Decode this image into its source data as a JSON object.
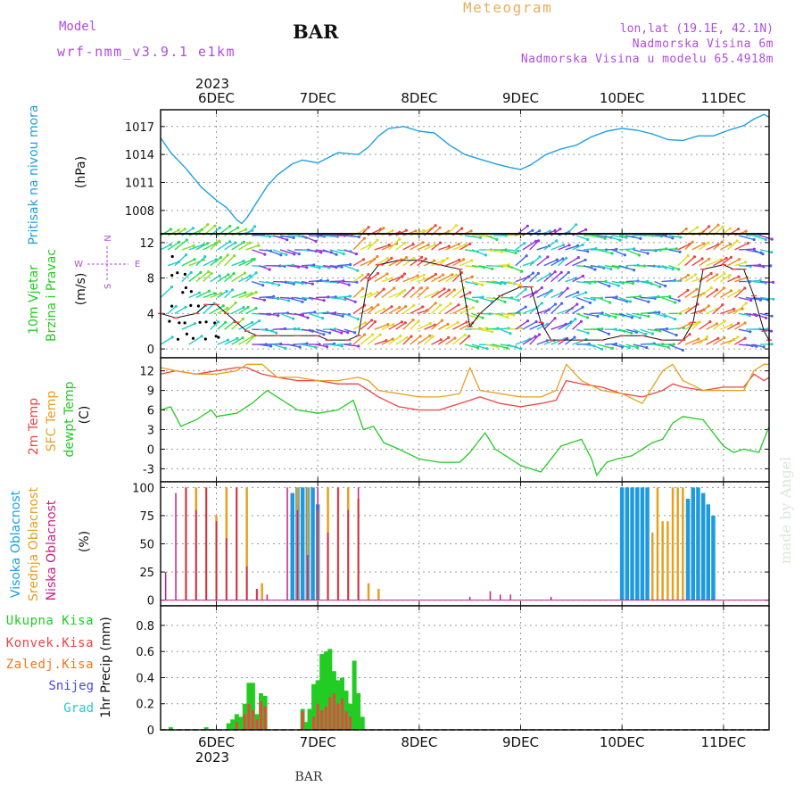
{
  "header": {
    "model_label": "Model",
    "model_name": "wrf-nmm_v3.9.1 e1km",
    "station": "BAR",
    "title": "Meteogram",
    "lonlat": "lon,lat (19.1E, 42.1N)",
    "altitude": "Nadmorska Visina 6m",
    "model_altitude": "Nadmorska Visina u modelu 65.4918m",
    "watermark": "made by Angel",
    "footer_station": "BAR"
  },
  "colors": {
    "pressure": "#1ea0e0",
    "temp2m": "#ee4444",
    "sfc": "#e6a020",
    "dew": "#22cc22",
    "high_cloud": "#1e9be0",
    "mid_cloud": "#e6a020",
    "low_cloud": "#cc1e80",
    "precip_total": "#22cc22",
    "precip_conv": "#ee4444",
    "precip_frz": "#f07820",
    "snow": "#4444ee",
    "graupel": "#22cccc",
    "label_purple": "#b04ce0",
    "wind_speed": "#ee4444"
  },
  "chart_data": [
    {
      "type": "line",
      "panel": "pressure",
      "ylabel_left": "Pritisak na nivou mora",
      "ylabel_unit": "(hPa)",
      "ylim": [
        1005.5,
        1018.8
      ],
      "yticks": [
        "1017",
        "1014",
        "1011",
        "1008"
      ],
      "yticks_values": [
        1017,
        1014,
        1011,
        1008
      ],
      "x_date_ticks": [
        "6DEC",
        "7DEC",
        "8DEC",
        "9DEC",
        "10DEC",
        "11DEC"
      ],
      "x_year": "2023",
      "x_days": [
        0,
        1,
        2,
        3,
        4,
        5
      ],
      "xlim_days": [
        -0.55,
        5.45
      ],
      "series": [
        {
          "x_days": [
            -0.55,
            -0.45,
            -0.3,
            -0.15,
            0,
            0.1,
            0.2,
            0.25,
            0.3,
            0.4,
            0.5,
            0.6,
            0.75,
            0.85,
            1.0,
            1.2,
            1.4,
            1.5,
            1.6,
            1.7,
            1.85,
            2.0,
            2.15,
            2.3,
            2.45,
            2.6,
            2.75,
            2.9,
            3.0,
            3.1,
            3.25,
            3.4,
            3.55,
            3.7,
            3.85,
            4.0,
            4.15,
            4.3,
            4.45,
            4.6,
            4.75,
            4.9,
            5.05,
            5.2,
            5.3,
            5.4,
            5.45
          ],
          "values": [
            1015.8,
            1014.2,
            1012.5,
            1010.5,
            1009.1,
            1008.3,
            1007.0,
            1006.6,
            1007.2,
            1008.9,
            1010.6,
            1011.8,
            1013.0,
            1013.4,
            1013.1,
            1014.2,
            1014.0,
            1014.8,
            1016.0,
            1016.8,
            1017.0,
            1016.5,
            1016.3,
            1015.0,
            1014.0,
            1013.5,
            1013.0,
            1012.6,
            1012.4,
            1012.9,
            1014.0,
            1014.6,
            1015.0,
            1015.9,
            1016.5,
            1016.8,
            1016.6,
            1016.2,
            1015.6,
            1015.5,
            1016.0,
            1016.0,
            1016.6,
            1017.1,
            1017.8,
            1018.3,
            1018.0
          ]
        }
      ]
    },
    {
      "type": "line",
      "panel": "wind",
      "ylabel_left": "10m Vjetar",
      "ylabel_left2": "Brzina i Pravac",
      "ylabel_unit": "(m/s)",
      "compass_n": "N",
      "compass_s": "S",
      "compass_w": "W",
      "compass_e": "E",
      "ylim": [
        -1,
        13
      ],
      "yticks": [
        "12",
        "8",
        "4",
        "0"
      ],
      "yticks_values": [
        12,
        8,
        4,
        0
      ],
      "series": [
        {
          "name": "speed",
          "x_days": [
            -0.55,
            -0.4,
            -0.2,
            -0.1,
            0.0,
            0.1,
            0.2,
            0.3,
            0.4,
            0.6,
            0.8,
            1.0,
            1.1,
            1.3,
            1.4,
            1.5,
            1.6,
            1.8,
            2.0,
            2.2,
            2.4,
            2.5,
            2.6,
            2.8,
            3.0,
            3.1,
            3.2,
            3.3,
            3.4,
            3.6,
            3.8,
            4.0,
            4.2,
            4.4,
            4.6,
            4.7,
            4.8,
            5.0,
            5.1,
            5.2,
            5.3,
            5.4,
            5.45
          ],
          "values": [
            4.0,
            3.5,
            4.0,
            5.0,
            5.0,
            4.0,
            3.0,
            2.0,
            1.5,
            1.5,
            1.5,
            1.5,
            1.0,
            1.0,
            1.5,
            8.0,
            9.5,
            10.0,
            10.0,
            9.5,
            9.0,
            2.5,
            4.0,
            6.0,
            7.0,
            7.0,
            3.0,
            1.0,
            1.0,
            1.0,
            1.0,
            1.5,
            1.5,
            1.0,
            1.0,
            3.0,
            9.0,
            9.5,
            9.0,
            9.0,
            6.0,
            2.0,
            1.0
          ]
        }
      ],
      "barb_bands": [
        {
          "from_day": -0.55,
          "to_day": 0.35,
          "colors": [
            "#22cccc",
            "#22dd55",
            "#88dd22"
          ]
        },
        {
          "from_day": 0.35,
          "to_day": 1.35,
          "colors": [
            "#9933dd",
            "#4466ee",
            "#22cccc"
          ]
        },
        {
          "from_day": 1.35,
          "to_day": 2.45,
          "colors": [
            "#ee4444",
            "#f08820",
            "#dddd22"
          ]
        },
        {
          "from_day": 2.45,
          "to_day": 2.95,
          "colors": [
            "#22dd55",
            "#22cccc",
            "#dddd22"
          ]
        },
        {
          "from_day": 2.95,
          "to_day": 3.55,
          "colors": [
            "#9933dd",
            "#4466ee",
            "#22cccc"
          ]
        },
        {
          "from_day": 3.55,
          "to_day": 4.55,
          "colors": [
            "#22cccc",
            "#22dd55",
            "#4466ee"
          ]
        },
        {
          "from_day": 4.55,
          "to_day": 5.15,
          "colors": [
            "#ee4444",
            "#f08820",
            "#dddd22"
          ]
        },
        {
          "from_day": 5.15,
          "to_day": 5.45,
          "colors": [
            "#9933dd",
            "#4466ee",
            "#22cccc"
          ]
        }
      ]
    },
    {
      "type": "line",
      "panel": "temperature",
      "ylabel_lines": [
        "2m Temp",
        "SFC Temp",
        "dewpt Temp"
      ],
      "ylabel_unit": "(C)",
      "ylim": [
        -5,
        14
      ],
      "yticks": [
        "12",
        "9",
        "6",
        "3",
        "0",
        "-3"
      ],
      "yticks_values": [
        12,
        9,
        6,
        3,
        0,
        -3
      ],
      "series": [
        {
          "name": "2m Temp",
          "x_days": [
            -0.55,
            -0.4,
            -0.2,
            0.0,
            0.2,
            0.3,
            0.45,
            0.6,
            0.8,
            1.0,
            1.2,
            1.4,
            1.5,
            1.6,
            1.8,
            2.0,
            2.2,
            2.4,
            2.5,
            2.6,
            2.8,
            3.0,
            3.2,
            3.35,
            3.45,
            3.6,
            3.8,
            4.0,
            4.2,
            4.4,
            4.5,
            4.6,
            4.8,
            5.0,
            5.2,
            5.3,
            5.4,
            5.45
          ],
          "values": [
            11.5,
            12.0,
            11.5,
            12.0,
            12.5,
            12.5,
            11.5,
            11.0,
            10.5,
            10.5,
            10.0,
            10.0,
            9.0,
            8.0,
            6.5,
            6.0,
            6.0,
            7.0,
            7.5,
            8.0,
            7.0,
            6.5,
            7.0,
            7.5,
            10.5,
            10.0,
            9.5,
            8.5,
            8.0,
            9.0,
            10.0,
            9.5,
            9.0,
            9.5,
            9.5,
            11.5,
            10.5,
            11.0
          ]
        },
        {
          "name": "SFC Temp",
          "x_days": [
            -0.55,
            -0.4,
            -0.2,
            0.0,
            0.2,
            0.3,
            0.45,
            0.6,
            0.8,
            1.0,
            1.2,
            1.4,
            1.5,
            1.6,
            1.8,
            2.0,
            2.2,
            2.4,
            2.5,
            2.6,
            2.8,
            3.0,
            3.2,
            3.35,
            3.45,
            3.6,
            3.8,
            4.0,
            4.2,
            4.4,
            4.5,
            4.6,
            4.8,
            5.0,
            5.2,
            5.3,
            5.4,
            5.45
          ],
          "values": [
            12.5,
            12.0,
            11.5,
            11.5,
            12.0,
            13.0,
            13.0,
            11.0,
            11.0,
            10.5,
            10.5,
            11.0,
            10.5,
            9.0,
            8.5,
            8.0,
            8.0,
            8.5,
            12.5,
            9.0,
            8.5,
            8.0,
            8.0,
            9.0,
            13.0,
            10.5,
            9.0,
            8.5,
            7.0,
            12.0,
            13.0,
            10.5,
            9.0,
            9.0,
            9.0,
            12.0,
            13.0,
            13.0
          ]
        },
        {
          "name": "dewpt Temp",
          "x_days": [
            -0.55,
            -0.45,
            -0.35,
            -0.2,
            -0.05,
            0.0,
            0.2,
            0.35,
            0.5,
            0.6,
            0.8,
            1.0,
            1.2,
            1.35,
            1.45,
            1.55,
            1.65,
            1.8,
            2.0,
            2.2,
            2.4,
            2.5,
            2.65,
            2.75,
            2.9,
            3.0,
            3.2,
            3.25,
            3.4,
            3.6,
            3.7,
            3.75,
            3.85,
            3.95,
            4.1,
            4.3,
            4.4,
            4.5,
            4.6,
            4.8,
            5.0,
            5.1,
            5.2,
            5.35,
            5.45
          ],
          "values": [
            6.0,
            6.5,
            3.5,
            4.5,
            6.0,
            5.0,
            5.5,
            7.0,
            9.0,
            8.0,
            6.0,
            5.5,
            6.0,
            7.5,
            3.0,
            3.5,
            1.0,
            0.0,
            -1.5,
            -2.0,
            -2.0,
            -0.5,
            2.5,
            0.0,
            -1.5,
            -2.5,
            -3.5,
            -2.5,
            0.5,
            1.5,
            -1.5,
            -4.0,
            -2.0,
            -1.5,
            -1.0,
            1.0,
            1.5,
            4.0,
            5.0,
            4.5,
            0.5,
            -0.5,
            0.0,
            -0.5,
            3.5
          ]
        }
      ]
    },
    {
      "type": "bar",
      "panel": "cloud",
      "ylabel_lines": [
        "Visoka Oblacnost",
        "Srednja Oblacnost",
        "Niska Oblacnost"
      ],
      "ylabel_unit": "(%)",
      "ylim": [
        -5,
        105
      ],
      "yticks": [
        "100",
        "75",
        "50",
        "25",
        "0"
      ],
      "yticks_values": [
        100,
        75,
        50,
        25,
        0
      ],
      "series": [
        {
          "name": "Visoka Oblacnost",
          "x_days": [
            0.75,
            0.8,
            0.85,
            0.9,
            0.95,
            1.0,
            4.0,
            4.05,
            4.1,
            4.15,
            4.2,
            4.25,
            4.65,
            4.7,
            4.75,
            4.8,
            4.85,
            4.9
          ],
          "values": [
            95,
            100,
            100,
            100,
            100,
            85,
            100,
            100,
            100,
            100,
            100,
            100,
            90,
            100,
            100,
            95,
            85,
            75
          ]
        },
        {
          "name": "Srednja Oblacnost",
          "x_days": [
            -0.3,
            -0.2,
            -0.1,
            0.0,
            0.1,
            0.2,
            0.3,
            0.4,
            0.45,
            0.8,
            0.9,
            1.0,
            1.1,
            1.2,
            1.3,
            1.4,
            1.5,
            1.6,
            4.3,
            4.35,
            4.4,
            4.45,
            4.5,
            4.55,
            4.6
          ],
          "values": [
            100,
            100,
            100,
            75,
            100,
            100,
            100,
            10,
            15,
            100,
            100,
            80,
            100,
            100,
            100,
            90,
            15,
            10,
            60,
            100,
            70,
            70,
            100,
            100,
            100
          ]
        },
        {
          "name": "Niska Oblacnost",
          "x_days": [
            -0.5,
            -0.4,
            -0.3,
            -0.2,
            -0.1,
            0.0,
            0.1,
            0.2,
            0.3,
            0.4,
            0.5,
            0.7,
            0.8,
            0.9,
            1.0,
            1.1,
            1.2,
            1.3,
            1.4,
            2.5,
            2.7,
            2.8,
            2.9,
            3.3
          ],
          "values": [
            25,
            95,
            100,
            80,
            100,
            70,
            55,
            100,
            30,
            10,
            5,
            100,
            80,
            40,
            100,
            60,
            100,
            80,
            100,
            3,
            8,
            5,
            5,
            3
          ]
        }
      ]
    },
    {
      "type": "bar",
      "panel": "precip",
      "ylabel_lines": [
        "Ukupna Kisa",
        "Konvek.Kisa",
        "Zaledj.Kisa",
        "Snijeg",
        "Grad"
      ],
      "ylabel_unit": "1hr Precip (mm)",
      "ylim": [
        0,
        0.95
      ],
      "yticks": [
        "0.8",
        "0.6",
        "0.4",
        "0.2",
        "0"
      ],
      "yticks_values": [
        0.8,
        0.6,
        0.4,
        0.2,
        0
      ],
      "series": [
        {
          "name": "Ukupna Kisa",
          "x_days": [
            -0.45,
            -0.1,
            0.12,
            0.16,
            0.2,
            0.24,
            0.28,
            0.32,
            0.36,
            0.4,
            0.44,
            0.48,
            0.85,
            0.88,
            0.92,
            0.96,
            1.0,
            1.04,
            1.08,
            1.12,
            1.16,
            1.2,
            1.24,
            1.28,
            1.32,
            1.36,
            1.4,
            1.44
          ],
          "values": [
            0.02,
            0.02,
            0.05,
            0.08,
            0.12,
            0.1,
            0.2,
            0.36,
            0.36,
            0.12,
            0.28,
            0.26,
            0.16,
            0.06,
            0.16,
            0.35,
            0.38,
            0.58,
            0.6,
            0.62,
            0.45,
            0.38,
            0.4,
            0.3,
            0.2,
            0.53,
            0.28,
            0.1
          ]
        },
        {
          "name": "Konvek.Kisa",
          "x_days": [
            0.2,
            0.28,
            0.32,
            0.36,
            0.4,
            0.44,
            0.48,
            0.85,
            0.96,
            1.0,
            1.04,
            1.08,
            1.12,
            1.16,
            1.2,
            1.24,
            1.28,
            1.32
          ],
          "values": [
            0.06,
            0.12,
            0.2,
            0.15,
            0.08,
            0.22,
            0.18,
            0.14,
            0.1,
            0.2,
            0.15,
            0.18,
            0.25,
            0.28,
            0.2,
            0.24,
            0.14,
            0.1
          ]
        },
        {
          "name": "Zaledj.Kisa",
          "x_days": [],
          "values": []
        },
        {
          "name": "Snijeg",
          "x_days": [],
          "values": []
        },
        {
          "name": "Grad",
          "x_days": [],
          "values": []
        }
      ]
    }
  ]
}
